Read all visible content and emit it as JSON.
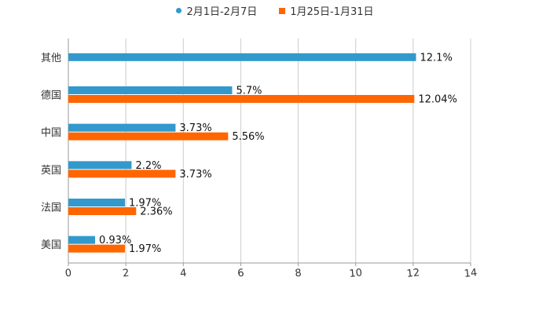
{
  "chart_data": {
    "type": "bar",
    "orientation": "horizontal",
    "categories": [
      "其他",
      "德国",
      "中国",
      "英国",
      "法国",
      "美国"
    ],
    "series": [
      {
        "name": "2月1日-2月7日",
        "values": [
          12.1,
          5.7,
          3.73,
          2.2,
          1.97,
          0.93
        ],
        "labels": [
          "12.1%",
          "5.7%",
          "3.73%",
          "2.2%",
          "1.97%",
          "0.93%"
        ],
        "color": "#3399CC",
        "marker": "circle"
      },
      {
        "name": "1月25日-1月31日",
        "values": [
          null,
          12.04,
          5.56,
          3.73,
          2.36,
          1.97
        ],
        "labels": [
          "",
          "12.04%",
          "5.56%",
          "3.73%",
          "2.36%",
          "1.97%"
        ],
        "color": "#FF6600",
        "marker": "square"
      }
    ],
    "xlim": [
      0,
      14
    ],
    "xticks": [
      "0",
      "2",
      "4",
      "6",
      "8",
      "10",
      "12",
      "14"
    ],
    "title": "",
    "xlabel": "",
    "ylabel": "",
    "grid": true,
    "legend_position": "top-center"
  }
}
